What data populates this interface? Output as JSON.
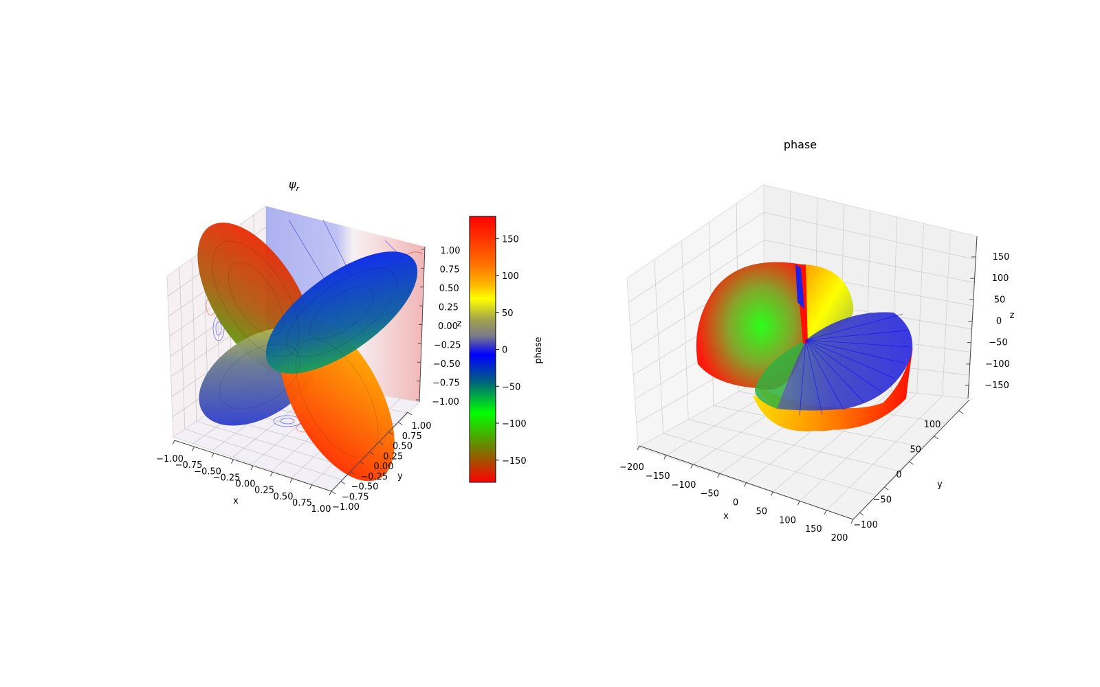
{
  "chart_data": [
    {
      "type": "surface3d",
      "title": "ψr",
      "title_base": "ψ",
      "title_sub": "r",
      "xlabel": "x",
      "ylabel": "y",
      "zlabel": "z",
      "xticks": [
        "−1.00",
        "−0.75",
        "−0.50",
        "−0.25",
        "0.00",
        "0.25",
        "0.50",
        "0.75",
        "1.00"
      ],
      "yticks": [
        "−1.00",
        "−0.75",
        "−0.50",
        "−0.25",
        "0.00",
        "0.25",
        "0.50",
        "0.75",
        "1.00"
      ],
      "zticks": [
        "1.00",
        "0.75",
        "0.50",
        "0.25",
        "0.00",
        "−0.25",
        "−0.50",
        "−0.75",
        "−1.00"
      ],
      "xlim": [
        -1,
        1
      ],
      "ylim": [
        -1,
        1
      ],
      "zlim": [
        -1,
        1
      ],
      "surface": "four-lobed orbital, colored by phase",
      "projections": "contour projections on back panes (blue negative, red positive)",
      "colorbar": {
        "label": "phase",
        "range": [
          -180,
          180
        ],
        "ticks": [
          "150",
          "100",
          "50",
          "0",
          "−50",
          "−100",
          "−150"
        ],
        "tick_values": [
          150,
          100,
          50,
          0,
          -50,
          -100,
          -150
        ],
        "colors": [
          "#ff0000",
          "#ff8000",
          "#ffff00",
          "#808080",
          "#0000ff",
          "#00ff00",
          "#ff0000"
        ]
      }
    },
    {
      "type": "surface3d",
      "title": "phase",
      "xlabel": "x",
      "ylabel": "y",
      "zlabel": "z",
      "xticks": [
        "−200",
        "−150",
        "−100",
        "−50",
        "0",
        "50",
        "100",
        "150",
        "200"
      ],
      "yticks": [
        "−100",
        "−50",
        "0",
        "50",
        "100"
      ],
      "zticks": [
        "150",
        "100",
        "50",
        "0",
        "−50",
        "−100",
        "−150"
      ],
      "xlim": [
        -200,
        200
      ],
      "ylim": [
        -120,
        120
      ],
      "zlim": [
        -180,
        180
      ],
      "surface": "phase-colored surface"
    }
  ]
}
